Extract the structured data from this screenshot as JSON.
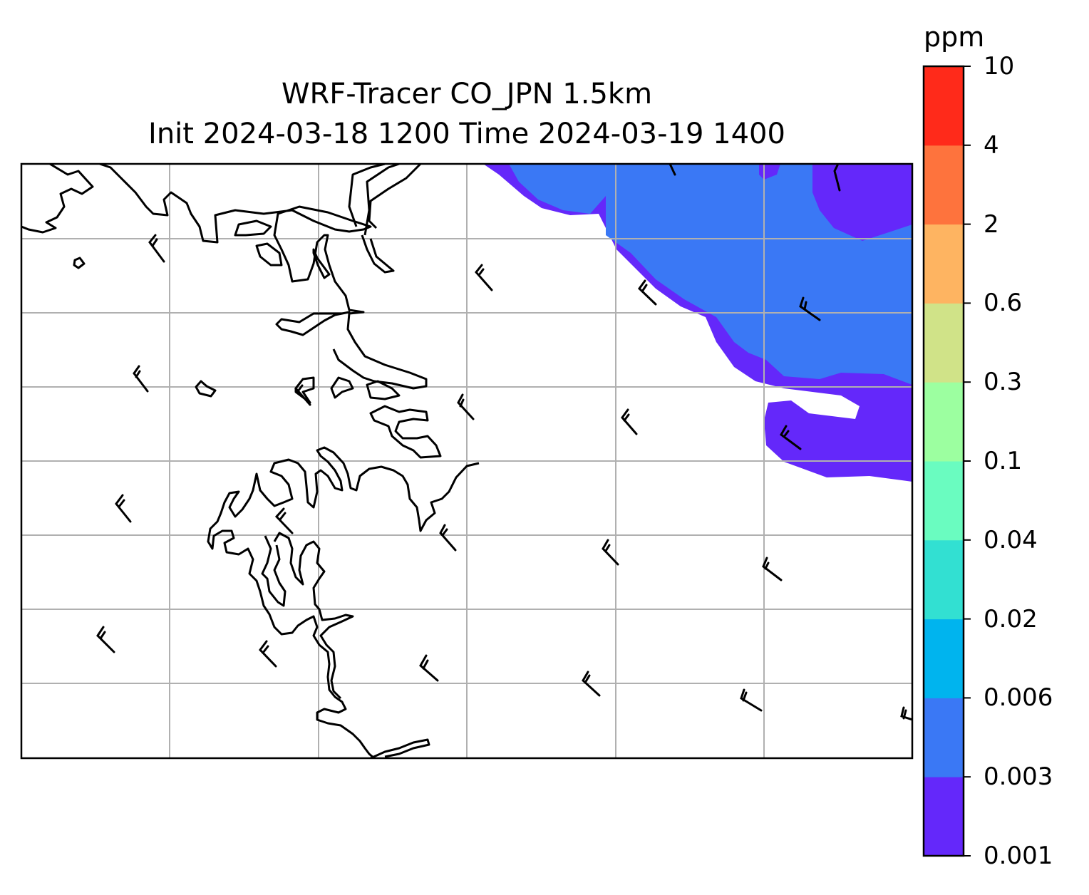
{
  "title": {
    "line1": "WRF-Tracer CO_JPN 1.5km",
    "line2": "Init 2024-03-18 1200 Time 2024-03-19 1400"
  },
  "colorbar": {
    "unit": "ppm",
    "levels": [
      "0.001",
      "0.003",
      "0.006",
      "0.02",
      "0.04",
      "0.1",
      "0.3",
      "0.6",
      "2",
      "4",
      "10"
    ],
    "colors": [
      "#6428fa",
      "#3a78f5",
      "#00b4ee",
      "#32e0d2",
      "#6afcc0",
      "#9cffa0",
      "#d0e388",
      "#feb461",
      "#fe733d",
      "#ff2a1a"
    ]
  },
  "map": {
    "grid": "on",
    "wind_barbs_shown": true,
    "wind_direction": "northwest",
    "tracer_area_levels": [
      "0.001",
      "0.003"
    ]
  }
}
